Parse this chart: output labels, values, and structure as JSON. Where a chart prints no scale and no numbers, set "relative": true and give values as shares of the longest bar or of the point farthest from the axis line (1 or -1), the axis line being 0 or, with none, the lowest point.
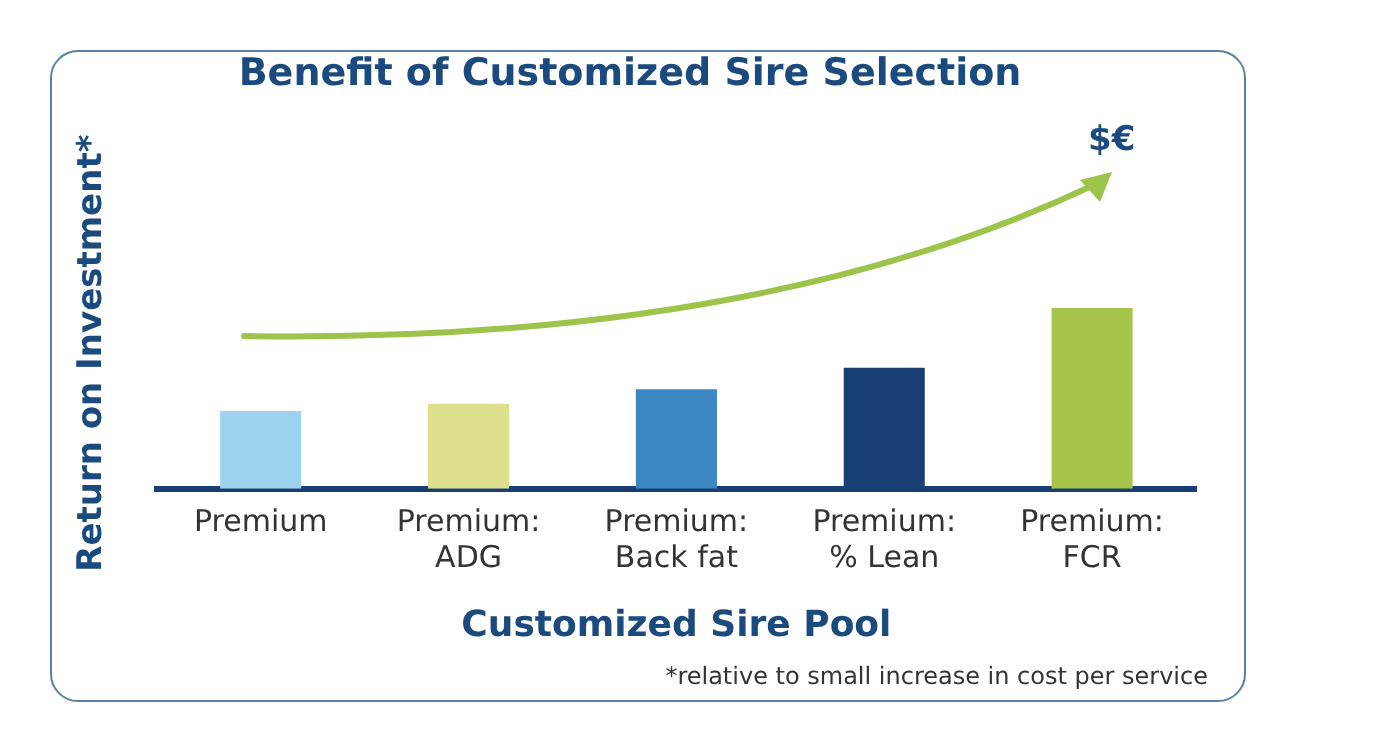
{
  "chart_data": {
    "type": "bar",
    "title": "Benefit of Customized Sire Selection",
    "xlabel": "Customized Sire Pool",
    "ylabel": "Return on Investment*",
    "categories": [
      "Premium",
      "Premium: ADG",
      "Premium: Back fat",
      "Premium: % Lean",
      "Premium: FCR"
    ],
    "values": [
      0.43,
      0.47,
      0.55,
      0.67,
      1
    ],
    "colors": [
      "#9dd3ef",
      "#dde08c",
      "#3a87c4",
      "#173f73",
      "#a6c44a"
    ],
    "relative": true,
    "grid": false,
    "legend": false,
    "annotations": [
      "$€",
      "*relative to small increase in cost per service"
    ]
  }
}
